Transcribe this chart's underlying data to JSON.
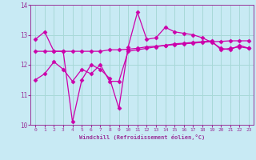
{
  "xlabel": "Windchill (Refroidissement éolien,°C)",
  "background_color": "#c8eaf4",
  "line_color": "#cc00aa",
  "grid_color": "#a8d8d8",
  "text_color": "#993399",
  "xlim": [
    -0.5,
    23.5
  ],
  "ylim": [
    10,
    14
  ],
  "yticks": [
    10,
    11,
    12,
    13,
    14
  ],
  "xticks": [
    0,
    1,
    2,
    3,
    4,
    5,
    6,
    7,
    8,
    9,
    10,
    11,
    12,
    13,
    14,
    15,
    16,
    17,
    18,
    19,
    20,
    21,
    22,
    23
  ],
  "series1_x": [
    0,
    1,
    2,
    3,
    4,
    5,
    6,
    7,
    8,
    9,
    10,
    11,
    12,
    13,
    14,
    15,
    16,
    17,
    18,
    19,
    20,
    21,
    22,
    23
  ],
  "series1_y": [
    12.85,
    13.1,
    12.45,
    12.45,
    10.1,
    11.5,
    12.0,
    11.85,
    11.55,
    10.55,
    12.6,
    13.75,
    12.85,
    12.9,
    13.25,
    13.1,
    13.05,
    13.0,
    12.9,
    12.75,
    12.55,
    12.5,
    12.65,
    12.55
  ],
  "series2_x": [
    0,
    1,
    2,
    3,
    4,
    5,
    6,
    7,
    8,
    9,
    10,
    11,
    12,
    13,
    14,
    15,
    16,
    17,
    18,
    19,
    20,
    21,
    22,
    23
  ],
  "series2_y": [
    12.45,
    12.45,
    12.45,
    12.45,
    12.45,
    12.45,
    12.45,
    12.45,
    12.5,
    12.5,
    12.52,
    12.55,
    12.6,
    12.62,
    12.65,
    12.67,
    12.7,
    12.72,
    12.75,
    12.77,
    12.78,
    12.8,
    12.8,
    12.8
  ],
  "series3_x": [
    0,
    1,
    2,
    3,
    4,
    5,
    6,
    7,
    8,
    9,
    10,
    11,
    12,
    13,
    14,
    15,
    16,
    17,
    18,
    19,
    20,
    21,
    22,
    23
  ],
  "series3_y": [
    11.5,
    11.7,
    12.1,
    11.85,
    11.45,
    11.85,
    11.7,
    12.0,
    11.45,
    11.45,
    12.45,
    12.5,
    12.55,
    12.6,
    12.65,
    12.7,
    12.72,
    12.75,
    12.77,
    12.8,
    12.5,
    12.55,
    12.6,
    12.55
  ],
  "marker": "D",
  "markersize": 2.5,
  "linewidth": 0.9
}
